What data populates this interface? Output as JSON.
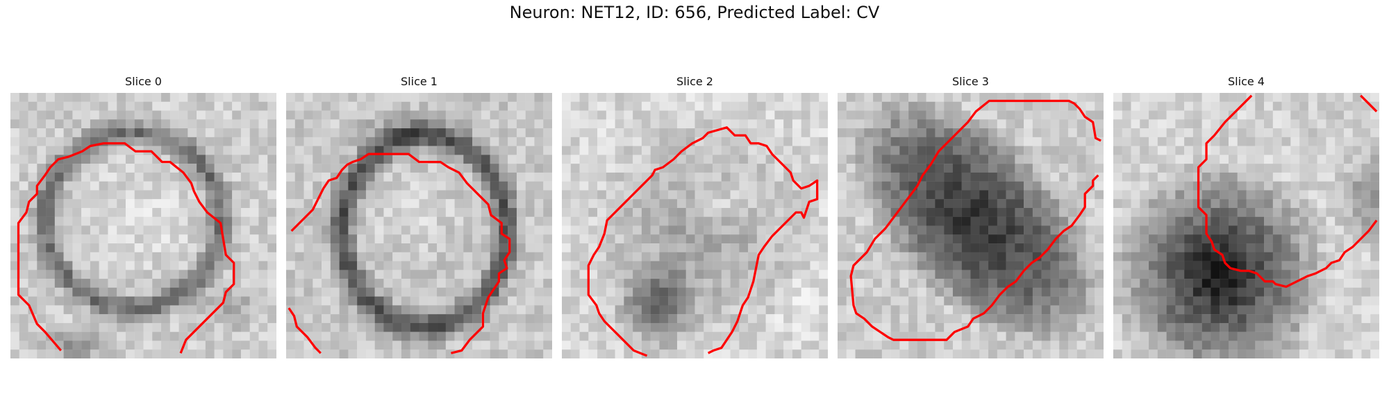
{
  "figure": {
    "title": "Neuron: NET12, ID: 656, Predicted Label: CV"
  },
  "panels": [
    {
      "title": "Slice 0",
      "image_name": "em-slice-0-image",
      "contour_color": "#ff0000"
    },
    {
      "title": "Slice 1",
      "image_name": "em-slice-1-image",
      "contour_color": "#ff0000"
    },
    {
      "title": "Slice 2",
      "image_name": "em-slice-2-image",
      "contour_color": "#ff0000"
    },
    {
      "title": "Slice 3",
      "image_name": "em-slice-3-image",
      "contour_color": "#ff0000"
    },
    {
      "title": "Slice 4",
      "image_name": "em-slice-4-image",
      "contour_color": "#ff0000"
    }
  ]
}
